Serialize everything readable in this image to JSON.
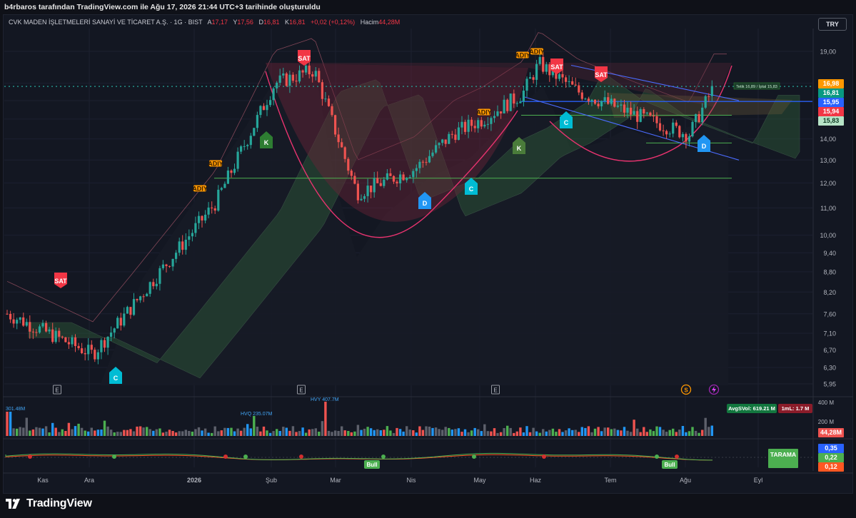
{
  "header": {
    "credit": "b4rbaros tarafından TradingView.com ile Ağu 17, 2026 21:44 UTC+3 tarihinde oluşturuldu"
  },
  "symbol": {
    "name": "CVK MADEN İŞLETMELERİ SANAYİ VE TİCARET A.Ş. · 1G · BIST",
    "open_label": "A",
    "open": "17,17",
    "high_label": "Y",
    "high": "17,56",
    "low_label": "D",
    "low": "16,81",
    "close_label": "K",
    "close": "16,81",
    "change": "+0,02 (+0,12%)",
    "volume_label": "Hacim",
    "volume": "44,28M"
  },
  "currency": "TRY",
  "price_tags": [
    {
      "label": "16,98",
      "color": "#ff9800",
      "price": 16.98
    },
    {
      "label": "16,81",
      "color": "#089981",
      "price": 16.81
    },
    {
      "label": "15,95",
      "color": "#2962ff",
      "price": 15.95
    },
    {
      "label": "15,94",
      "color": "#f23645",
      "price": 15.94
    },
    {
      "label": "15,83",
      "color": "#b7e4c7",
      "price": 15.83,
      "text_color": "#0e3b23"
    }
  ],
  "indicator_panel": {
    "avg_vol": "AvgSVol: 619.21 M",
    "vol_1m": "1mL: 1.7 M",
    "vol_tag": "44,28M",
    "vol_axis": [
      "400 M",
      "200 M"
    ],
    "osc_tags": [
      {
        "label": "0,35",
        "color": "#2962ff"
      },
      {
        "label": "0,22",
        "color": "#4caf50"
      },
      {
        "label": "0,12",
        "color": "#ff5722"
      }
    ],
    "tarama": "TARAMA",
    "bull_labels": [
      "Bull",
      "Bull"
    ]
  },
  "chart_data": {
    "type": "candlestick",
    "symbol": "CVK",
    "exchange": "BIST",
    "interval": "1G",
    "y_scale": "log",
    "y_ticks": [
      19.0,
      17.0,
      16.0,
      15.0,
      14.0,
      13.0,
      12.0,
      11.0,
      10.0,
      9.4,
      8.8,
      8.2,
      7.6,
      7.1,
      6.7,
      6.3,
      5.95
    ],
    "y_tick_labels": [
      "19,00",
      "17,00",
      "16,00",
      "15,00",
      "14,00",
      "13,00",
      "12,00",
      "11,00",
      "10,00",
      "9,40",
      "8,80",
      "8,20",
      "7,60",
      "7,10",
      "6,70",
      "6,30",
      "5,95"
    ],
    "x_labels": [
      "Kas",
      "Ara",
      "2026",
      "Şub",
      "Mar",
      "Nis",
      "May",
      "Haz",
      "Tem",
      "Ağu",
      "Eyl"
    ],
    "monthly_path": [
      {
        "month": "Kas",
        "price": 7.6
      },
      {
        "month": "Ara",
        "price": 6.6
      },
      {
        "month": "Ara",
        "price": 7.8
      },
      {
        "month": "2026",
        "price": 11.2
      },
      {
        "month": "Şub",
        "price": 17.0
      },
      {
        "month": "Şub",
        "price": 17.8
      },
      {
        "month": "Mar",
        "price": 11.6
      },
      {
        "month": "Nis",
        "price": 12.6
      },
      {
        "month": "Nis",
        "price": 14.3
      },
      {
        "month": "May",
        "price": 15.0
      },
      {
        "month": "May",
        "price": 16.4
      },
      {
        "month": "Haz",
        "price": 18.2
      },
      {
        "month": "Haz",
        "price": 16.5
      },
      {
        "month": "Tem",
        "price": 15.3
      },
      {
        "month": "Ağu",
        "price": 14.2
      },
      {
        "month": "Ağu",
        "price": 16.81
      }
    ],
    "last_close": 16.81,
    "signal_labels": [
      "SAT",
      "SAT",
      "SAT",
      "SAT",
      "K",
      "K",
      "C",
      "C",
      "C",
      "D",
      "D",
      "ADIY",
      "ADIY",
      "ADIY",
      "ADIY",
      "ADIY",
      "E",
      "E",
      "E",
      "S"
    ],
    "annotation": "Tetik 16,89 / İptal 15,83",
    "volume_annotations": [
      "301.48M",
      "HVQ 235.07M",
      "HVY 407.7M"
    ],
    "horizontal_levels": [
      12.2,
      13.8,
      15.2,
      15.95
    ]
  },
  "footer": {
    "brand": "TradingView"
  }
}
